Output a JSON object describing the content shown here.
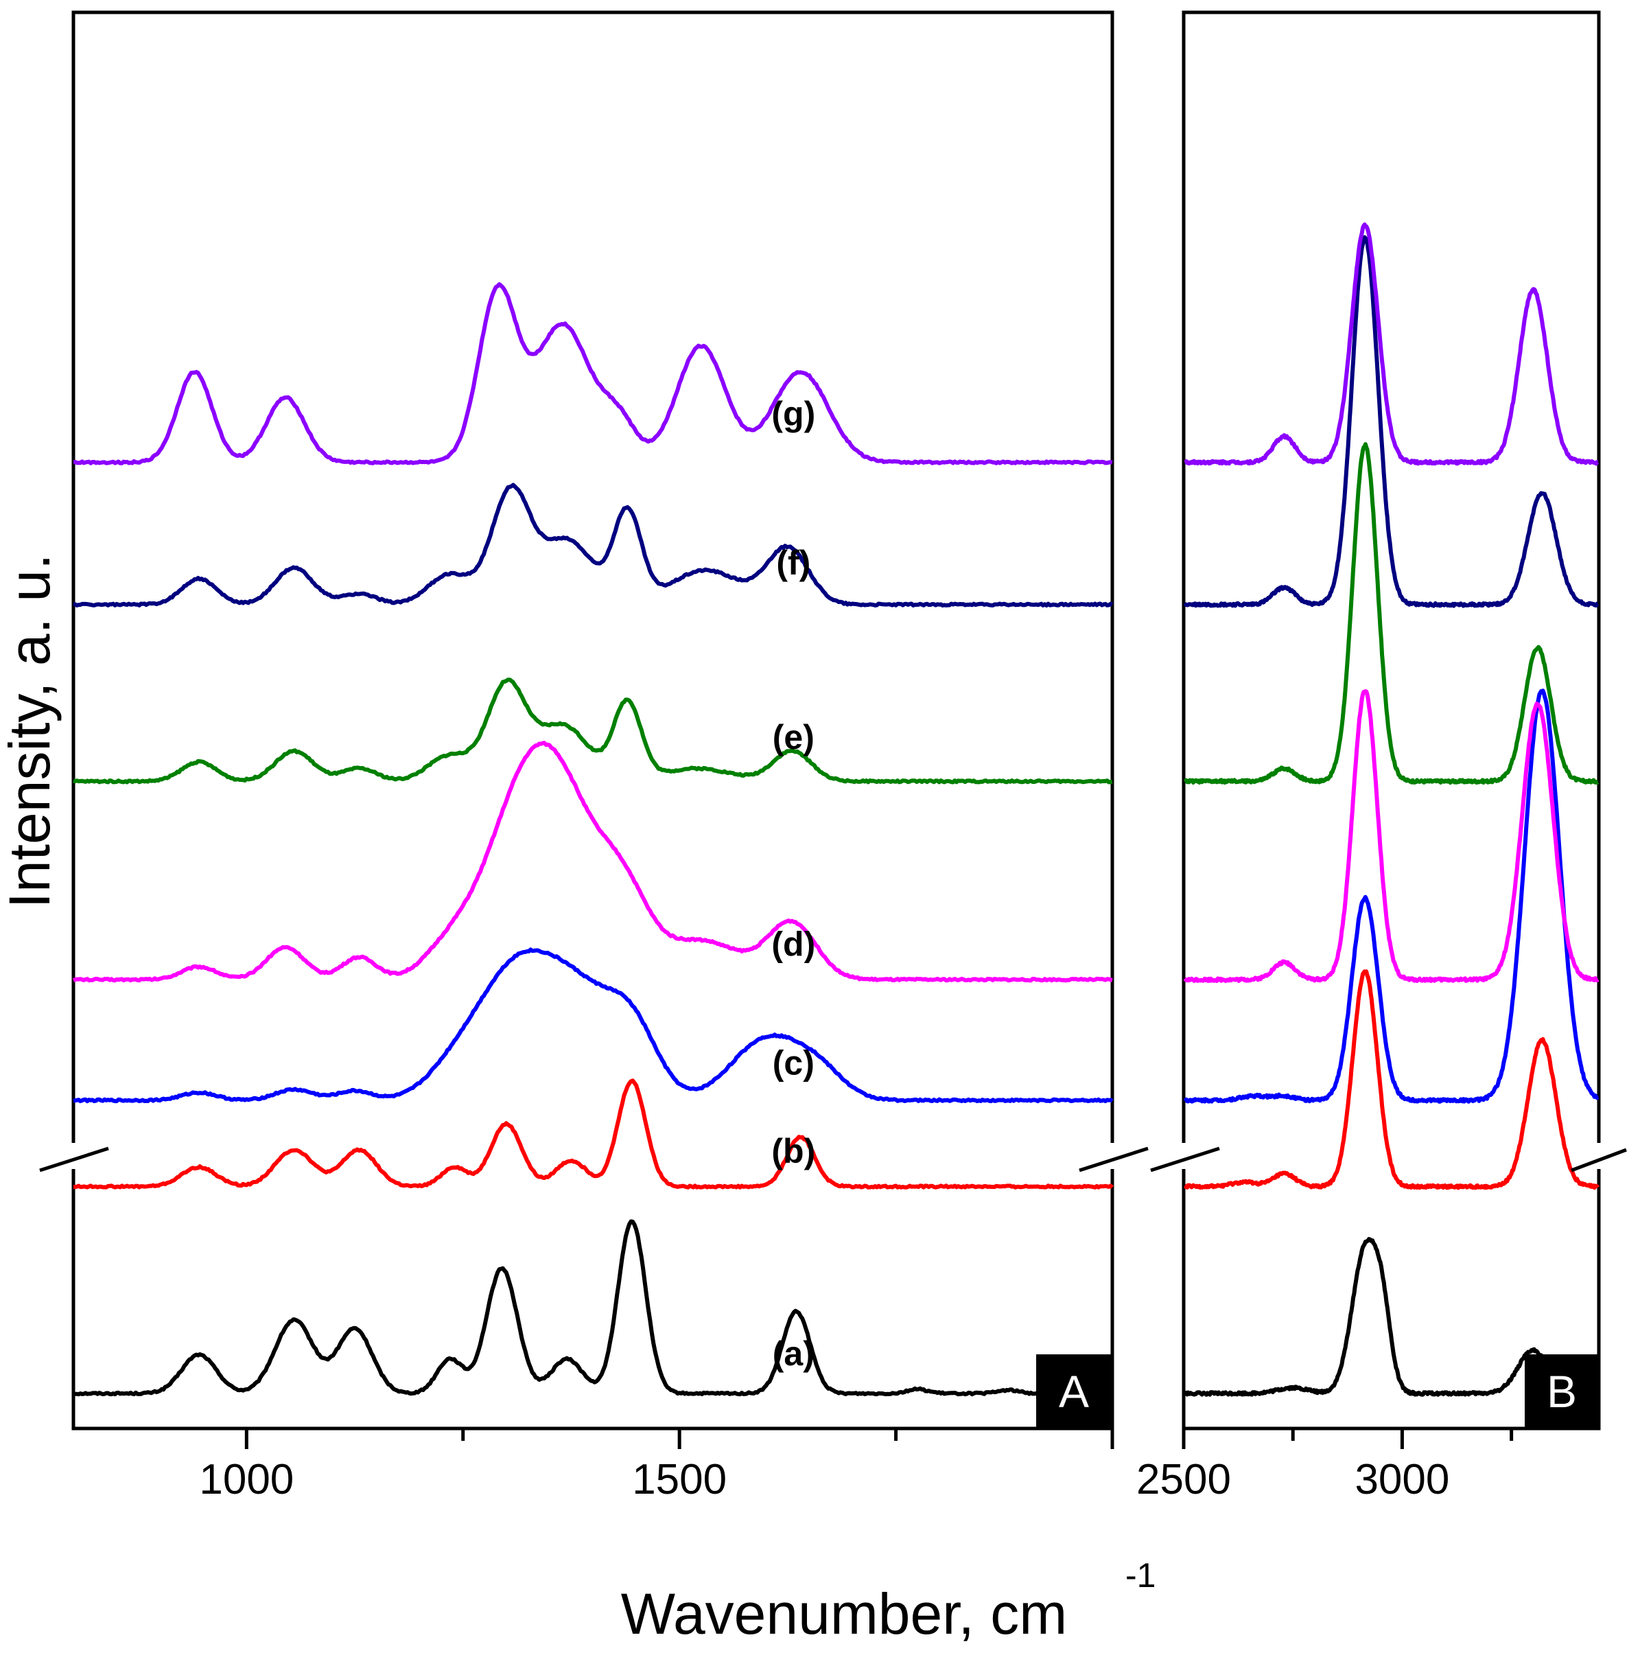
{
  "chart_data": {
    "type": "line",
    "title": "",
    "ylabel": "Intensity, a. u.",
    "xlabel": "Wavenumber, cm",
    "xlabel_superscript": "-1",
    "panels": [
      {
        "id": "A",
        "tag": "A",
        "xlim": [
          800,
          2000
        ],
        "major_ticks": [
          1000,
          1500,
          2000
        ],
        "minor_ticks": [
          1250,
          1750
        ],
        "tick_labels": [
          "1000",
          "1500"
        ]
      },
      {
        "id": "B",
        "tag": "B",
        "xlim": [
          2500,
          3450
        ],
        "major_ticks": [
          2500,
          3000
        ],
        "minor_ticks": [
          2750,
          3250
        ],
        "tick_labels": [
          "2500",
          "3000"
        ]
      }
    ],
    "series": [
      {
        "name": "(a)",
        "color": "#000000",
        "baseline": 0.0,
        "label_at": 1600,
        "label_offset": 0.065,
        "peaks": [
          [
            945,
            0.09,
            20
          ],
          [
            1055,
            0.17,
            22
          ],
          [
            1125,
            0.15,
            20
          ],
          [
            1235,
            0.08,
            15
          ],
          [
            1295,
            0.29,
            18
          ],
          [
            1370,
            0.08,
            18
          ],
          [
            1445,
            0.4,
            16
          ],
          [
            1635,
            0.19,
            16
          ],
          [
            1775,
            0.01,
            12
          ],
          [
            1880,
            0.008,
            12
          ]
        ],
        "peaksB": [
          [
            2750,
            0.013,
            35
          ],
          [
            2915,
            0.33,
            30
          ],
          [
            2955,
            0.14,
            20
          ],
          [
            3300,
            0.1,
            35
          ]
        ]
      },
      {
        "name": "(b)",
        "color": "#ff0000",
        "baseline": 0.48,
        "label_at": 1600,
        "label_offset": 0.055,
        "peaks": [
          [
            945,
            0.045,
            20
          ],
          [
            1055,
            0.085,
            22
          ],
          [
            1130,
            0.085,
            20
          ],
          [
            1240,
            0.045,
            15
          ],
          [
            1300,
            0.145,
            18
          ],
          [
            1375,
            0.06,
            18
          ],
          [
            1445,
            0.245,
            16
          ],
          [
            1640,
            0.115,
            16
          ]
        ],
        "peaksB": [
          [
            2640,
            0.01,
            30
          ],
          [
            2730,
            0.03,
            25
          ],
          [
            2915,
            0.5,
            28
          ],
          [
            3320,
            0.34,
            32
          ]
        ]
      },
      {
        "name": "(c)",
        "color": "#0000ff",
        "baseline": 0.68,
        "label_at": 1600,
        "label_offset": 0.06,
        "peaks": [
          [
            945,
            0.018,
            20
          ],
          [
            1055,
            0.025,
            22
          ],
          [
            1125,
            0.022,
            20
          ],
          [
            1245,
            0.08,
            35
          ],
          [
            1310,
            0.27,
            40
          ],
          [
            1380,
            0.23,
            40
          ],
          [
            1445,
            0.16,
            30
          ],
          [
            1600,
            0.14,
            40
          ],
          [
            1660,
            0.06,
            30
          ]
        ],
        "peaksB": [
          [
            2660,
            0.01,
            30
          ],
          [
            2730,
            0.01,
            25
          ],
          [
            2915,
            0.47,
            30
          ],
          [
            3320,
            0.95,
            40
          ]
        ]
      },
      {
        "name": "(d)",
        "color": "#ff00ff",
        "baseline": 0.96,
        "label_at": 1600,
        "label_offset": 0.055,
        "peaks": [
          [
            945,
            0.03,
            20
          ],
          [
            1045,
            0.075,
            22
          ],
          [
            1130,
            0.052,
            20
          ],
          [
            1235,
            0.07,
            30
          ],
          [
            1310,
            0.32,
            40
          ],
          [
            1365,
            0.37,
            40
          ],
          [
            1435,
            0.18,
            30
          ],
          [
            1525,
            0.09,
            45
          ],
          [
            1630,
            0.13,
            28
          ]
        ],
        "peaksB": [
          [
            2730,
            0.04,
            25
          ],
          [
            2915,
            0.67,
            28
          ],
          [
            3310,
            0.64,
            35
          ]
        ]
      },
      {
        "name": "(e)",
        "color": "#008000",
        "baseline": 1.42,
        "label_at": 1600,
        "label_offset": 0.075,
        "peaks": [
          [
            945,
            0.045,
            20
          ],
          [
            1055,
            0.07,
            22
          ],
          [
            1130,
            0.03,
            20
          ],
          [
            1235,
            0.06,
            25
          ],
          [
            1300,
            0.22,
            22
          ],
          [
            1365,
            0.13,
            30
          ],
          [
            1440,
            0.18,
            16
          ],
          [
            1520,
            0.03,
            40
          ],
          [
            1630,
            0.07,
            22
          ]
        ],
        "peaksB": [
          [
            2730,
            0.03,
            25
          ],
          [
            2915,
            0.78,
            28
          ],
          [
            3310,
            0.31,
            30
          ]
        ]
      },
      {
        "name": "(f)",
        "color": "#000080",
        "baseline": 1.83,
        "label_at": 1600,
        "label_offset": 0.07,
        "peaks": [
          [
            945,
            0.06,
            20
          ],
          [
            1055,
            0.085,
            22
          ],
          [
            1130,
            0.025,
            20
          ],
          [
            1235,
            0.07,
            25
          ],
          [
            1305,
            0.26,
            22
          ],
          [
            1370,
            0.15,
            30
          ],
          [
            1440,
            0.21,
            16
          ],
          [
            1530,
            0.08,
            40
          ],
          [
            1625,
            0.13,
            24
          ]
        ],
        "peaksB": [
          [
            2730,
            0.04,
            25
          ],
          [
            2915,
            0.85,
            30
          ],
          [
            3320,
            0.26,
            32
          ]
        ]
      },
      {
        "name": "(g)",
        "color": "#8b00ff",
        "baseline": 2.16,
        "label_at": 1600,
        "label_offset": 0.085,
        "peaks": [
          [
            940,
            0.21,
            20
          ],
          [
            1045,
            0.15,
            22
          ],
          [
            1290,
            0.39,
            22
          ],
          [
            1365,
            0.32,
            32
          ],
          [
            1430,
            0.09,
            20
          ],
          [
            1525,
            0.27,
            28
          ],
          [
            1640,
            0.21,
            32
          ]
        ],
        "peaksB": [
          [
            2730,
            0.06,
            25
          ],
          [
            2915,
            0.55,
            30
          ],
          [
            3300,
            0.4,
            32
          ]
        ]
      }
    ],
    "axis_break": "between traces (a) and (b)"
  }
}
